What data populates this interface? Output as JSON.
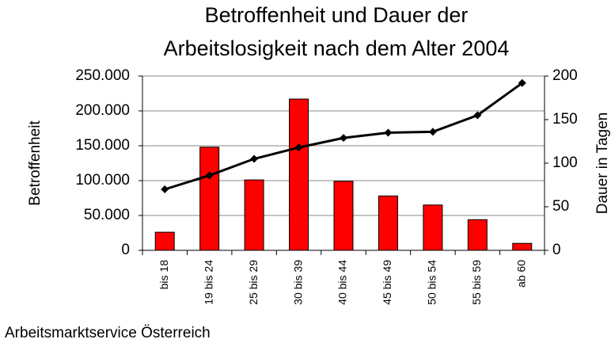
{
  "chart_data": {
    "type": "bar_line",
    "title": [
      "Betroffenheit und Dauer der",
      "Arbeitslosigkeit nach dem Alter 2004"
    ],
    "ylabel": "Betroffenheit",
    "y2label": "Dauer in Tagen",
    "source": "Arbeitsmarktservice Österreich",
    "categories": [
      "bis 18",
      "19 bis 24",
      "25 bis 29",
      "30 bis 39",
      "40 bis 44",
      "45 bis 49",
      "50 bis 54",
      "55 bis 59",
      "ab 60"
    ],
    "series": [
      {
        "name": "Betroffenheit",
        "color": "#ff0000",
        "values": [
          26000,
          148000,
          101000,
          217000,
          99000,
          78000,
          65000,
          44000,
          10000
        ]
      },
      {
        "name": "Dauer in Tagen",
        "color": "#000000",
        "axis": "y2",
        "values": [
          70,
          86,
          105,
          118,
          129,
          135,
          136,
          155,
          192
        ]
      }
    ],
    "ylim": [
      0,
      250000
    ],
    "yticks": [
      0,
      {
        "value": 50000,
        "label": "50.000"
      },
      {
        "value": 100000,
        "label": "100.000"
      },
      {
        "value": 150000,
        "label": "150.000"
      },
      {
        "value": 200000,
        "label": "200.000"
      },
      {
        "value": 250000,
        "label": "250.000"
      }
    ],
    "y2lim": [
      0,
      200
    ],
    "y2ticks": [
      0,
      50,
      100,
      150,
      200
    ],
    "grid": true
  }
}
